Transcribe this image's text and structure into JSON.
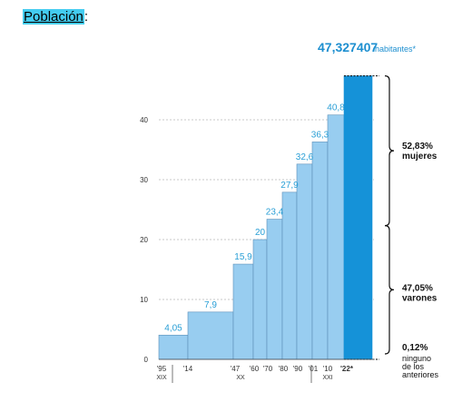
{
  "heading": {
    "label": "Población",
    "suffix": ":"
  },
  "chart_data": {
    "type": "bar",
    "x": [
      "'95",
      "'14",
      "'47",
      "'60",
      "'70",
      "'80",
      "'90",
      "'01",
      "'10",
      "'22*"
    ],
    "values": [
      4.05,
      7.9,
      15.9,
      20,
      23.4,
      27.9,
      32.6,
      36.3,
      40.8,
      47.327407
    ],
    "data_labels": [
      "4,05",
      "7,9",
      "15,9",
      "20",
      "23,4",
      "27,9",
      "32,6",
      "36,3",
      "40,8",
      "47,327407"
    ],
    "ylim": [
      0,
      50
    ],
    "yticks": [
      0,
      10,
      20,
      30,
      40
    ],
    "grid": true,
    "eras": [
      "XIX",
      "XX",
      "XXI"
    ],
    "total": {
      "value": "47,327407",
      "unit": "habitantes*"
    },
    "breakdown": [
      {
        "pct": "52,83%",
        "label": "mujeres",
        "share": 0.5283
      },
      {
        "pct": "47,05%",
        "label": "varones",
        "share": 0.4705
      },
      {
        "pct": "0,12%",
        "label": "ninguno de los anteriores",
        "share": 0.0012
      }
    ],
    "colors": {
      "bar": "#98cdf0",
      "highlight": "#1592d8",
      "label": "#2a9fd6"
    }
  }
}
